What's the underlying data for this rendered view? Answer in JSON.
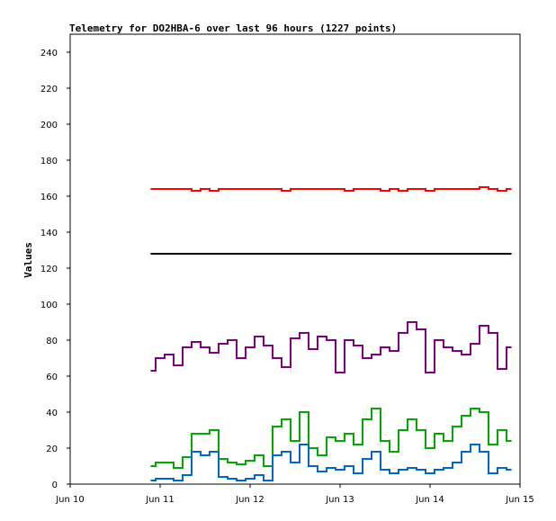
{
  "chart_data": {
    "type": "line",
    "title": "Telemetry for DO2HBA-6 over last 96 hours (1227 points)",
    "xlabel": "",
    "ylabel": "Values",
    "ylim": [
      0,
      250
    ],
    "yticks": [
      0,
      20,
      40,
      60,
      80,
      100,
      120,
      140,
      160,
      180,
      200,
      220,
      240
    ],
    "xlim": [
      "Jun 10",
      "Jun 15"
    ],
    "xticks": [
      "Jun 10",
      "Jun 11",
      "Jun 12",
      "Jun 13",
      "Jun 14",
      "Jun 15"
    ],
    "grid": false,
    "legend": "none",
    "x": [
      10.9,
      11.0,
      11.1,
      11.2,
      11.3,
      11.4,
      11.5,
      11.6,
      11.7,
      11.8,
      11.9,
      12.0,
      12.1,
      12.2,
      12.3,
      12.4,
      12.5,
      12.6,
      12.7,
      12.8,
      12.9,
      13.0,
      13.1,
      13.2,
      13.3,
      13.4,
      13.5,
      13.6,
      13.7,
      13.8,
      13.9,
      14.0,
      14.1,
      14.2,
      14.3,
      14.4,
      14.5,
      14.6,
      14.7,
      14.8,
      14.9
    ],
    "series": [
      {
        "color": "#ff0000",
        "values": [
          164,
          164,
          164,
          164,
          164,
          163,
          164,
          163,
          164,
          164,
          164,
          164,
          164,
          164,
          164,
          163,
          164,
          164,
          164,
          164,
          164,
          164,
          163,
          164,
          164,
          164,
          163,
          164,
          163,
          164,
          164,
          163,
          164,
          164,
          164,
          164,
          164,
          165,
          164,
          163,
          164
        ]
      },
      {
        "color": "#000000",
        "values": [
          128,
          128,
          128,
          128,
          128,
          128,
          128,
          128,
          128,
          128,
          128,
          128,
          128,
          128,
          128,
          128,
          128,
          128,
          128,
          128,
          128,
          128,
          128,
          128,
          128,
          128,
          128,
          128,
          128,
          128,
          128,
          128,
          128,
          128,
          128,
          128,
          128,
          128,
          128,
          128,
          128
        ]
      },
      {
        "color": "#800080",
        "values": [
          63,
          70,
          72,
          66,
          76,
          79,
          76,
          73,
          78,
          80,
          70,
          76,
          82,
          77,
          70,
          65,
          81,
          84,
          75,
          82,
          80,
          62,
          80,
          77,
          70,
          72,
          76,
          74,
          84,
          90,
          86,
          62,
          80,
          76,
          74,
          72,
          78,
          88,
          84,
          64,
          76
        ]
      },
      {
        "color": "#00aa00",
        "values": [
          10,
          12,
          12,
          9,
          15,
          28,
          28,
          30,
          14,
          12,
          11,
          13,
          16,
          10,
          32,
          36,
          24,
          40,
          20,
          16,
          26,
          24,
          28,
          22,
          36,
          42,
          24,
          18,
          30,
          36,
          30,
          20,
          28,
          24,
          32,
          38,
          42,
          40,
          22,
          30,
          24
        ]
      },
      {
        "color": "#0066cc",
        "values": [
          2,
          3,
          3,
          2,
          5,
          18,
          16,
          18,
          4,
          3,
          2,
          3,
          5,
          2,
          16,
          18,
          12,
          22,
          10,
          7,
          9,
          8,
          10,
          6,
          14,
          18,
          8,
          6,
          8,
          9,
          8,
          6,
          8,
          9,
          12,
          18,
          22,
          18,
          6,
          9,
          8
        ]
      }
    ]
  }
}
